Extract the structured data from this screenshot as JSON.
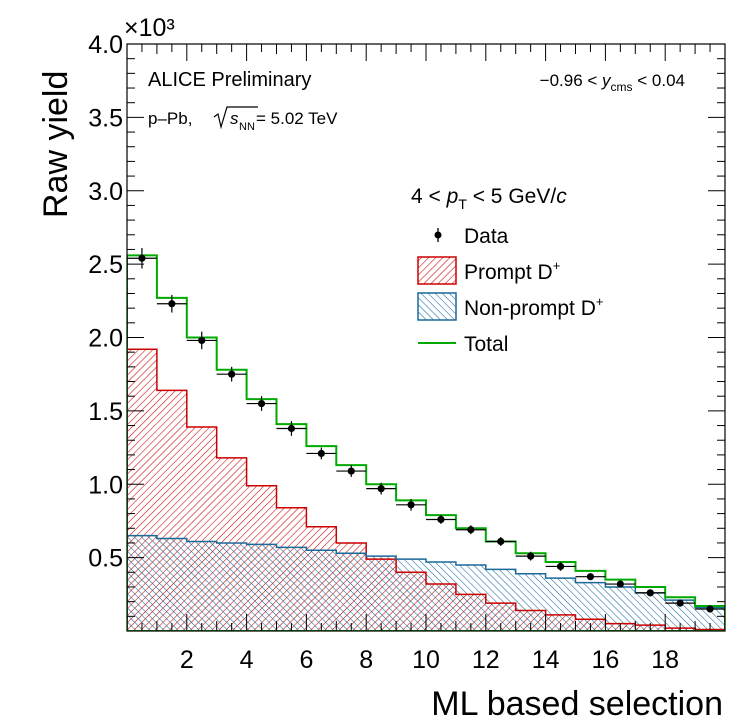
{
  "chart_data": {
    "type": "histogram",
    "title": "",
    "xlabel": "ML based selection",
    "ylabel": "Raw yield",
    "y_multiplier": "×10³",
    "xlim": [
      0,
      20
    ],
    "ylim": [
      0,
      4.0
    ],
    "x_ticks": [
      2,
      4,
      6,
      8,
      10,
      12,
      14,
      16,
      18
    ],
    "y_ticks": [
      0.5,
      1.0,
      1.5,
      2.0,
      2.5,
      3.0,
      3.5,
      4.0
    ],
    "y_tick_labels": [
      "0.5",
      "1.0",
      "1.5",
      "2.0",
      "2.5",
      "3.0",
      "3.5",
      "4.0"
    ],
    "bin_edges": [
      0,
      1,
      2,
      3,
      4,
      5,
      6,
      7,
      8,
      9,
      10,
      11,
      12,
      13,
      14,
      15,
      16,
      17,
      18,
      19,
      20
    ],
    "annotations": {
      "experiment": "ALICE Preliminary",
      "system_prefix": "p–Pb, ",
      "system_energy": " = 5.02 TeV",
      "rapidity_prefix": "−0.96 < ",
      "rapidity_var": "y",
      "rapidity_sub": "cms",
      "rapidity_suffix": " < 0.04",
      "pt_prefix": "4 < ",
      "pt_var": "p",
      "pt_sub": "T",
      "pt_suffix": " < 5 GeV/",
      "pt_c": "c"
    },
    "legend": {
      "position": "right",
      "data_label": "Data",
      "prompt_label": "Prompt D",
      "nonprompt_label": "Non-prompt D",
      "total_label": "Total",
      "superscript": "+"
    },
    "series": [
      {
        "name": "Prompt D+",
        "kind": "filled-step",
        "color": "#cc0000",
        "values": [
          1.92,
          1.64,
          1.39,
          1.18,
          0.99,
          0.84,
          0.71,
          0.6,
          0.49,
          0.4,
          0.32,
          0.25,
          0.19,
          0.14,
          0.11,
          0.08,
          0.05,
          0.04,
          0.02,
          0.01
        ]
      },
      {
        "name": "Non-prompt D+",
        "kind": "filled-step",
        "color": "#1a6a9a",
        "values": [
          0.65,
          0.63,
          0.61,
          0.6,
          0.59,
          0.57,
          0.55,
          0.53,
          0.51,
          0.49,
          0.47,
          0.45,
          0.42,
          0.39,
          0.36,
          0.33,
          0.3,
          0.26,
          0.21,
          0.16
        ]
      },
      {
        "name": "Total",
        "kind": "step-line",
        "color": "#00aa00",
        "values": [
          2.56,
          2.27,
          2.0,
          1.78,
          1.58,
          1.41,
          1.26,
          1.13,
          1.0,
          0.89,
          0.79,
          0.7,
          0.61,
          0.53,
          0.47,
          0.41,
          0.35,
          0.3,
          0.23,
          0.17
        ]
      },
      {
        "name": "Data",
        "kind": "points",
        "color": "#000000",
        "x": [
          0.5,
          1.5,
          2.5,
          3.5,
          4.5,
          5.5,
          6.5,
          7.5,
          8.5,
          9.5,
          10.5,
          11.5,
          12.5,
          13.5,
          14.5,
          15.5,
          16.5,
          17.5,
          18.5,
          19.5
        ],
        "values": [
          2.54,
          2.23,
          1.98,
          1.75,
          1.55,
          1.38,
          1.21,
          1.09,
          0.97,
          0.86,
          0.76,
          0.69,
          0.61,
          0.51,
          0.44,
          0.37,
          0.32,
          0.26,
          0.19,
          0.15
        ],
        "errors": [
          0.07,
          0.06,
          0.06,
          0.05,
          0.05,
          0.05,
          0.04,
          0.04,
          0.04,
          0.04,
          0.03,
          0.03,
          0.03,
          0.03,
          0.03,
          0.02,
          0.02,
          0.02,
          0.02,
          0.02
        ]
      }
    ]
  }
}
